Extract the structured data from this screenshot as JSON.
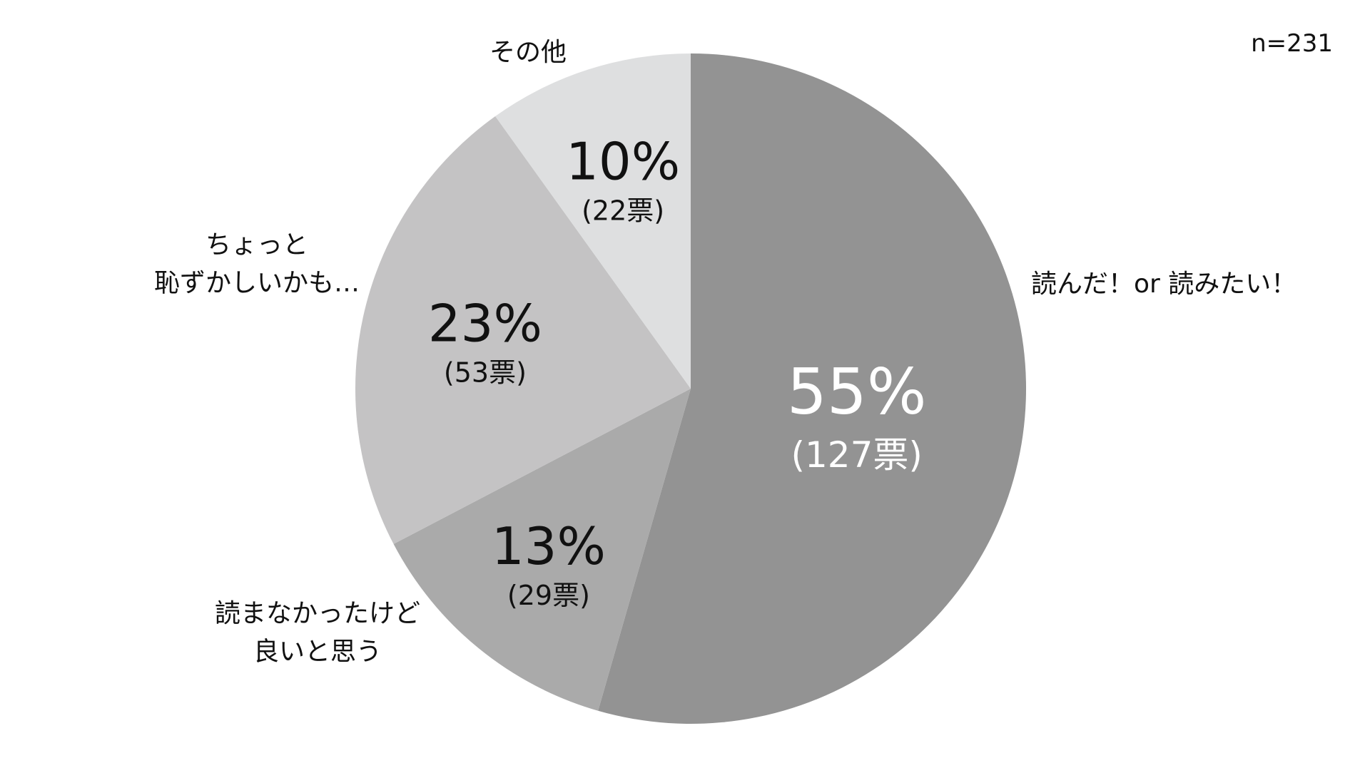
{
  "chart_data": {
    "type": "pie",
    "sample_size": "n=231",
    "start": "12 o'clock",
    "direction": "clockwise",
    "slices": [
      {
        "label_lines": [
          "読んだ！or 読みたい！"
        ],
        "value": 55,
        "percent_label": "55%",
        "count_label": "(127票)",
        "color": "#939393",
        "value_text_color": "#ffffff"
      },
      {
        "label_lines": [
          "読まなかったけど",
          "良いと思う"
        ],
        "value": 13,
        "percent_label": "13%",
        "count_label": "(29票)",
        "color": "#aaaaaa",
        "value_text_color": "#111111"
      },
      {
        "label_lines": [
          "ちょっと",
          "恥ずかしいかも…"
        ],
        "value": 23,
        "percent_label": "23%",
        "count_label": "(53票)",
        "color": "#c4c3c4",
        "value_text_color": "#111111"
      },
      {
        "label_lines": [
          "その他"
        ],
        "value": 10,
        "percent_label": "10%",
        "count_label": "(22票)",
        "color": "#dedfe0",
        "value_text_color": "#111111"
      }
    ]
  }
}
